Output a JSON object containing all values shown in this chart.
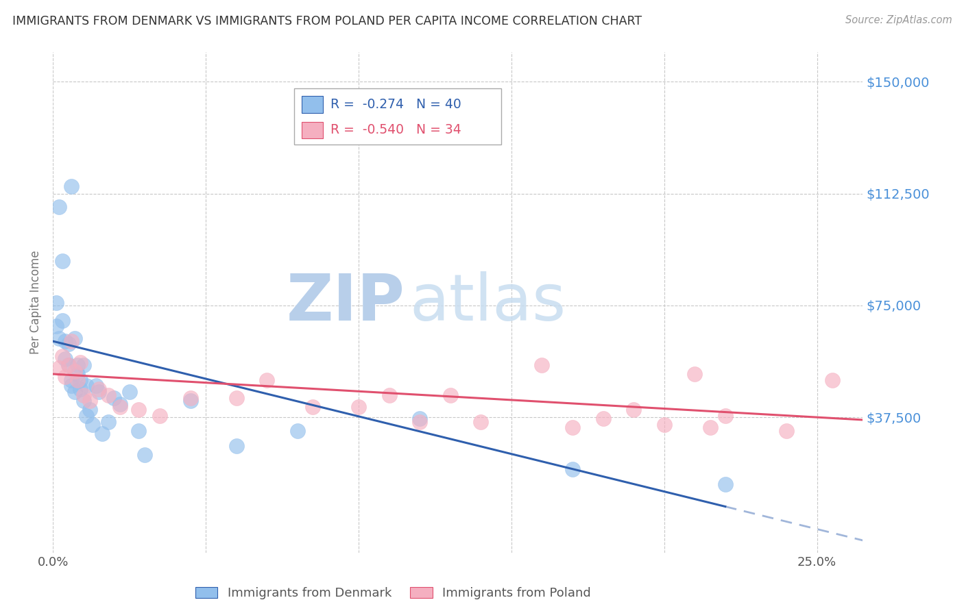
{
  "title": "IMMIGRANTS FROM DENMARK VS IMMIGRANTS FROM POLAND PER CAPITA INCOME CORRELATION CHART",
  "source": "Source: ZipAtlas.com",
  "ylabel": "Per Capita Income",
  "background_color": "#ffffff",
  "grid_color": "#c8c8c8",
  "title_color": "#333333",
  "source_color": "#999999",
  "ytick_color": "#4a90d9",
  "denmark_color": "#92bfec",
  "poland_color": "#f5afc0",
  "denmark_line_color": "#2f5fad",
  "poland_line_color": "#e0506e",
  "denmark_R": "-0.274",
  "denmark_N": "40",
  "poland_R": "-0.540",
  "poland_N": "34",
  "legend_label_denmark": "Immigrants from Denmark",
  "legend_label_poland": "Immigrants from Poland",
  "xlim": [
    0.0,
    0.265
  ],
  "ylim": [
    -8000,
    160000
  ],
  "ytick_vals": [
    37500,
    75000,
    112500,
    150000
  ],
  "ytick_labels": [
    "$37,500",
    "$75,000",
    "$112,500",
    "$150,000"
  ],
  "xtick_vals": [
    0.0,
    0.05,
    0.1,
    0.15,
    0.2,
    0.25
  ],
  "xtick_labels": [
    "0.0%",
    "",
    "",
    "",
    "",
    "25.0%"
  ],
  "denmark_x": [
    0.001,
    0.001,
    0.002,
    0.002,
    0.003,
    0.003,
    0.004,
    0.004,
    0.005,
    0.005,
    0.006,
    0.006,
    0.006,
    0.007,
    0.007,
    0.008,
    0.008,
    0.009,
    0.009,
    0.01,
    0.01,
    0.011,
    0.011,
    0.012,
    0.013,
    0.014,
    0.015,
    0.016,
    0.018,
    0.02,
    0.022,
    0.025,
    0.028,
    0.03,
    0.045,
    0.06,
    0.08,
    0.12,
    0.17,
    0.22
  ],
  "denmark_y": [
    76000,
    68000,
    64000,
    108000,
    70000,
    90000,
    63000,
    57000,
    55000,
    62000,
    50000,
    48000,
    115000,
    46000,
    64000,
    55000,
    52000,
    50000,
    47000,
    43000,
    55000,
    48000,
    38000,
    40000,
    35000,
    48000,
    46000,
    32000,
    36000,
    44000,
    42000,
    46000,
    33000,
    25000,
    43000,
    28000,
    33000,
    37000,
    20000,
    15000
  ],
  "poland_x": [
    0.002,
    0.003,
    0.004,
    0.005,
    0.006,
    0.007,
    0.008,
    0.009,
    0.01,
    0.012,
    0.015,
    0.018,
    0.022,
    0.028,
    0.035,
    0.045,
    0.06,
    0.07,
    0.085,
    0.1,
    0.11,
    0.12,
    0.13,
    0.14,
    0.16,
    0.17,
    0.18,
    0.19,
    0.2,
    0.21,
    0.215,
    0.22,
    0.24,
    0.255
  ],
  "poland_y": [
    54000,
    58000,
    51000,
    55000,
    63000,
    53000,
    50000,
    56000,
    45000,
    43000,
    47000,
    45000,
    41000,
    40000,
    38000,
    44000,
    44000,
    50000,
    41000,
    41000,
    45000,
    36000,
    45000,
    36000,
    55000,
    34000,
    37000,
    40000,
    35000,
    52000,
    34000,
    38000,
    33000,
    50000
  ],
  "watermark_zip": "ZIP",
  "watermark_atlas": "atlas",
  "watermark_color": "#dce9f7"
}
